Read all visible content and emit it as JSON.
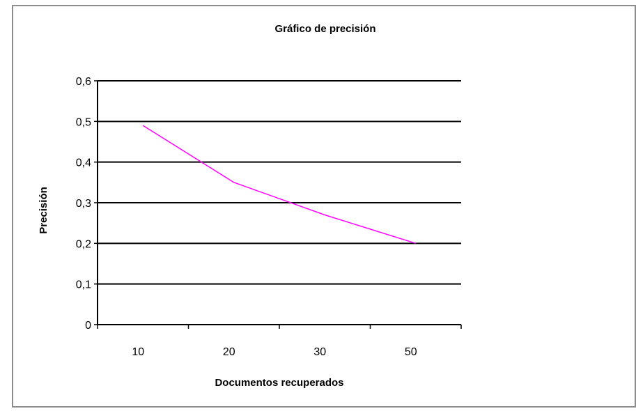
{
  "chart_data": {
    "type": "line",
    "title": "Gráfico de precisión",
    "xlabel": "Documentos recuperados",
    "ylabel": "Precisión",
    "categories": [
      "10",
      "20",
      "30",
      "50"
    ],
    "series": [
      {
        "values": [
          0.49,
          0.35,
          0.27,
          0.2
        ],
        "color": "#ff00ff"
      }
    ],
    "ylim": [
      0,
      0.6
    ],
    "y_ticks": [
      "0",
      "0,1",
      "0,2",
      "0,3",
      "0,4",
      "0,5",
      "0,6"
    ],
    "y_tick_values": [
      0,
      0.1,
      0.2,
      0.3,
      0.4,
      0.5,
      0.6
    ],
    "grid": true,
    "legend": "none"
  }
}
